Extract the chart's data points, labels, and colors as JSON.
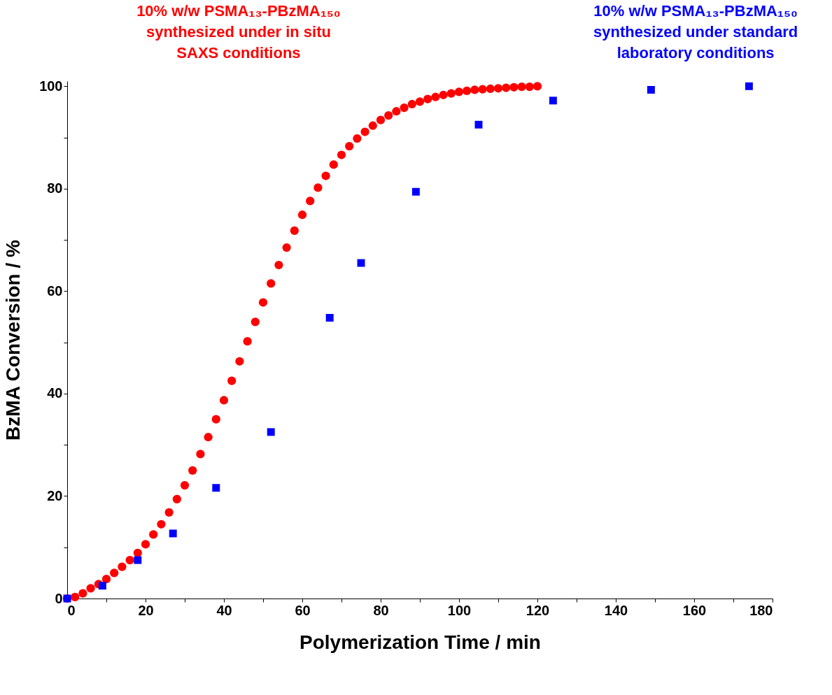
{
  "chart_data": {
    "type": "scatter",
    "xlabel": "Polymerization Time / min",
    "ylabel": "BzMA Conversion / %",
    "xlim": [
      0,
      180
    ],
    "ylim": [
      0,
      101
    ],
    "xticks": [
      0,
      {
        "value": 10,
        "label": null
      },
      20,
      {
        "value": 30,
        "label": null
      },
      40,
      {
        "value": 50,
        "label": null
      },
      60,
      {
        "value": 70,
        "label": null
      },
      80,
      {
        "value": 90,
        "label": null
      },
      100,
      {
        "value": 110,
        "label": null
      },
      120,
      {
        "value": 130,
        "label": null
      },
      140,
      {
        "value": 150,
        "label": null
      },
      160,
      {
        "value": 170,
        "label": null
      },
      180
    ],
    "yticks": [
      0,
      {
        "value": 10,
        "label": null
      },
      20,
      {
        "value": 30,
        "label": null
      },
      40,
      {
        "value": 50,
        "label": null
      },
      60,
      {
        "value": 70,
        "label": null
      },
      80,
      {
        "value": 90,
        "label": null
      },
      100
    ],
    "grid": false,
    "series": [
      {
        "name": "10% w/w PSMA₁₃-PBzMA₁₅₀\nsynthesized under in situ\nSAXS conditions",
        "color": "#ff0000",
        "marker": "circle",
        "x": [
          0,
          2,
          4,
          6,
          8,
          10,
          12,
          14,
          16,
          18,
          20,
          22,
          24,
          26,
          28,
          30,
          32,
          34,
          36,
          38,
          40,
          42,
          44,
          46,
          48,
          50,
          52,
          54,
          56,
          58,
          60,
          62,
          64,
          66,
          68,
          70,
          72,
          74,
          76,
          78,
          80,
          82,
          84,
          86,
          88,
          90,
          92,
          94,
          96,
          98,
          100,
          102,
          104,
          106,
          108,
          110,
          112,
          114,
          116,
          118,
          120
        ],
        "values": [
          0,
          0.3,
          1.0,
          2.0,
          2.8,
          3.8,
          5.0,
          6.2,
          7.5,
          8.9,
          10.6,
          12.5,
          14.5,
          16.8,
          19.4,
          22.1,
          25.0,
          28.2,
          31.5,
          35.0,
          38.7,
          42.5,
          46.3,
          50.2,
          54.0,
          57.8,
          61.5,
          65.1,
          68.5,
          71.8,
          74.9,
          77.6,
          80.2,
          82.5,
          84.7,
          86.6,
          88.3,
          89.8,
          91.1,
          92.3,
          93.4,
          94.3,
          95.1,
          95.8,
          96.5,
          97.0,
          97.5,
          97.9,
          98.3,
          98.6,
          98.9,
          99.1,
          99.3,
          99.4,
          99.5,
          99.6,
          99.7,
          99.8,
          99.9,
          99.9,
          100
        ]
      },
      {
        "name": "10% w/w PSMA₁₃-PBzMA₁₅₀\nsynthesized under standard\nlaboratory conditions",
        "color": "#0000ff",
        "marker": "square",
        "x": [
          0,
          9,
          18,
          27,
          38,
          52,
          67,
          75,
          89,
          105,
          124,
          149,
          174
        ],
        "values": [
          0,
          2.5,
          7.5,
          12.7,
          21.6,
          32.5,
          54.8,
          65.5,
          79.4,
          92.5,
          97.2,
          99.3,
          100
        ]
      }
    ]
  }
}
